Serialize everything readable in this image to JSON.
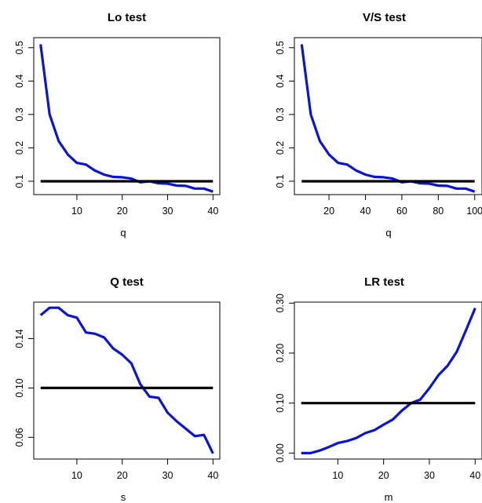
{
  "chart_data": [
    {
      "type": "line",
      "title": "Lo test",
      "xlabel": "q",
      "ylabel": "",
      "xlim": [
        0.5,
        41.5
      ],
      "ylim": [
        0.06,
        0.53
      ],
      "x_ticks": [
        "10",
        "20",
        "30",
        "40"
      ],
      "y_ticks": [
        "0.1",
        "0.2",
        "0.3",
        "0.4",
        "0.5"
      ],
      "grid": false,
      "series": [
        {
          "color": "#0a14d8",
          "x": [
            2,
            4,
            6,
            8,
            10,
            12,
            14,
            16,
            18,
            20,
            22,
            24,
            26,
            28,
            30,
            32,
            34,
            36,
            38,
            40
          ],
          "y": [
            0.51,
            0.3,
            0.22,
            0.18,
            0.155,
            0.15,
            0.132,
            0.12,
            0.113,
            0.112,
            0.108,
            0.097,
            0.1,
            0.094,
            0.093,
            0.087,
            0.086,
            0.078,
            0.078,
            0.069
          ]
        },
        {
          "color": "#000000",
          "x": [
            2,
            40
          ],
          "y": [
            0.1,
            0.1
          ]
        }
      ]
    },
    {
      "type": "line",
      "title": "V/S test",
      "xlabel": "q",
      "ylabel": "",
      "xlim": [
        1,
        104
      ],
      "ylim": [
        0.06,
        0.53
      ],
      "x_ticks": [
        "20",
        "40",
        "60",
        "80",
        "100"
      ],
      "y_ticks": [
        "0.1",
        "0.2",
        "0.3",
        "0.4",
        "0.5"
      ],
      "grid": false,
      "series": [
        {
          "color": "#0a14d8",
          "x": [
            5,
            10,
            15,
            20,
            25,
            30,
            35,
            40,
            45,
            50,
            55,
            60,
            65,
            70,
            75,
            80,
            85,
            90,
            95,
            100
          ],
          "y": [
            0.51,
            0.3,
            0.22,
            0.18,
            0.155,
            0.15,
            0.132,
            0.12,
            0.113,
            0.112,
            0.108,
            0.097,
            0.1,
            0.094,
            0.093,
            0.087,
            0.086,
            0.078,
            0.078,
            0.069
          ]
        },
        {
          "color": "#000000",
          "x": [
            5,
            100
          ],
          "y": [
            0.1,
            0.1
          ]
        }
      ]
    },
    {
      "type": "line",
      "title": "Q test",
      "xlabel": "s",
      "ylabel": "",
      "xlim": [
        0.5,
        41.5
      ],
      "ylim": [
        0.0424,
        0.1696
      ],
      "x_ticks": [
        "10",
        "20",
        "30",
        "40"
      ],
      "y_ticks": [
        "0.06",
        "0.10",
        "0.14"
      ],
      "grid": false,
      "series": [
        {
          "color": "#0a14d8",
          "x": [
            2,
            4,
            6,
            8,
            10,
            12,
            14,
            16,
            18,
            20,
            22,
            24,
            26,
            28,
            30,
            32,
            34,
            36,
            38,
            40
          ],
          "y": [
            0.159,
            0.165,
            0.165,
            0.159,
            0.157,
            0.145,
            0.144,
            0.141,
            0.132,
            0.127,
            0.12,
            0.103,
            0.093,
            0.092,
            0.08,
            0.073,
            0.067,
            0.061,
            0.062,
            0.047
          ]
        },
        {
          "color": "#000000",
          "x": [
            2,
            40
          ],
          "y": [
            0.1,
            0.1
          ]
        }
      ]
    },
    {
      "type": "line",
      "title": "LR test",
      "xlabel": "m",
      "ylabel": "",
      "xlim": [
        0.5,
        41.5
      ],
      "ylim": [
        -0.012,
        0.302
      ],
      "x_ticks": [
        "10",
        "20",
        "30",
        "40"
      ],
      "y_ticks": [
        "0.00",
        "0.10",
        "0.20",
        "0.30"
      ],
      "grid": false,
      "series": [
        {
          "color": "#0a14d8",
          "x": [
            2,
            4,
            6,
            8,
            10,
            12,
            14,
            16,
            18,
            20,
            22,
            24,
            26,
            28,
            30,
            32,
            34,
            36,
            38,
            40
          ],
          "y": [
            0.0,
            0.0,
            0.005,
            0.012,
            0.02,
            0.024,
            0.03,
            0.04,
            0.046,
            0.057,
            0.067,
            0.085,
            0.1,
            0.107,
            0.13,
            0.156,
            0.175,
            0.203,
            0.246,
            0.29
          ]
        },
        {
          "color": "#000000",
          "x": [
            2,
            40
          ],
          "y": [
            0.1,
            0.1
          ]
        }
      ]
    }
  ]
}
